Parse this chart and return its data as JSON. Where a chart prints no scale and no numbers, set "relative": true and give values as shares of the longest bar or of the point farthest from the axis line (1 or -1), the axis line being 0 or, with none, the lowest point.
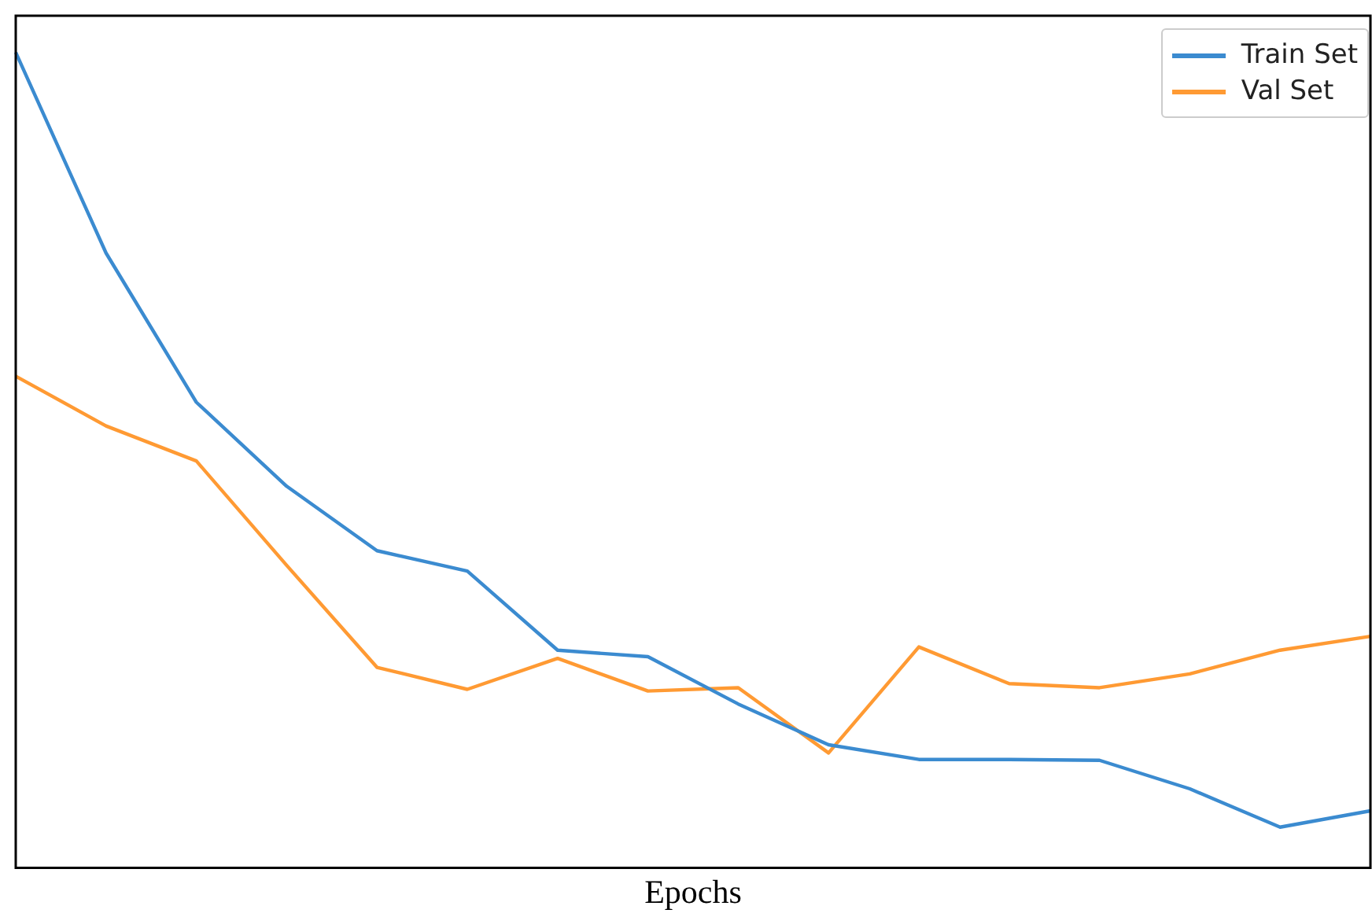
{
  "chart_data": {
    "type": "line",
    "xlabel": "Epochs",
    "relative": true,
    "legend": "top right",
    "grid": false,
    "marker": "none",
    "categories": [
      null,
      null,
      null,
      null,
      null,
      null,
      null,
      null,
      null,
      null,
      null,
      null,
      null,
      null,
      null,
      null
    ],
    "series": [
      {
        "name": "Train Set",
        "color": "#3b8bd0",
        "values": [
          1,
          0.754,
          0.571,
          0.468,
          0.389,
          0.364,
          0.267,
          0.259,
          0.201,
          0.151,
          0.133,
          0.133,
          0.132,
          0.097,
          0.05,
          0.07
        ]
      },
      {
        "name": "Val Set",
        "color": "#ff9a33",
        "values": [
          0.603,
          0.542,
          0.499,
          0.371,
          0.246,
          0.219,
          0.257,
          0.217,
          0.221,
          0.141,
          0.271,
          0.226,
          0.221,
          0.238,
          0.267,
          0.284
        ]
      }
    ]
  }
}
